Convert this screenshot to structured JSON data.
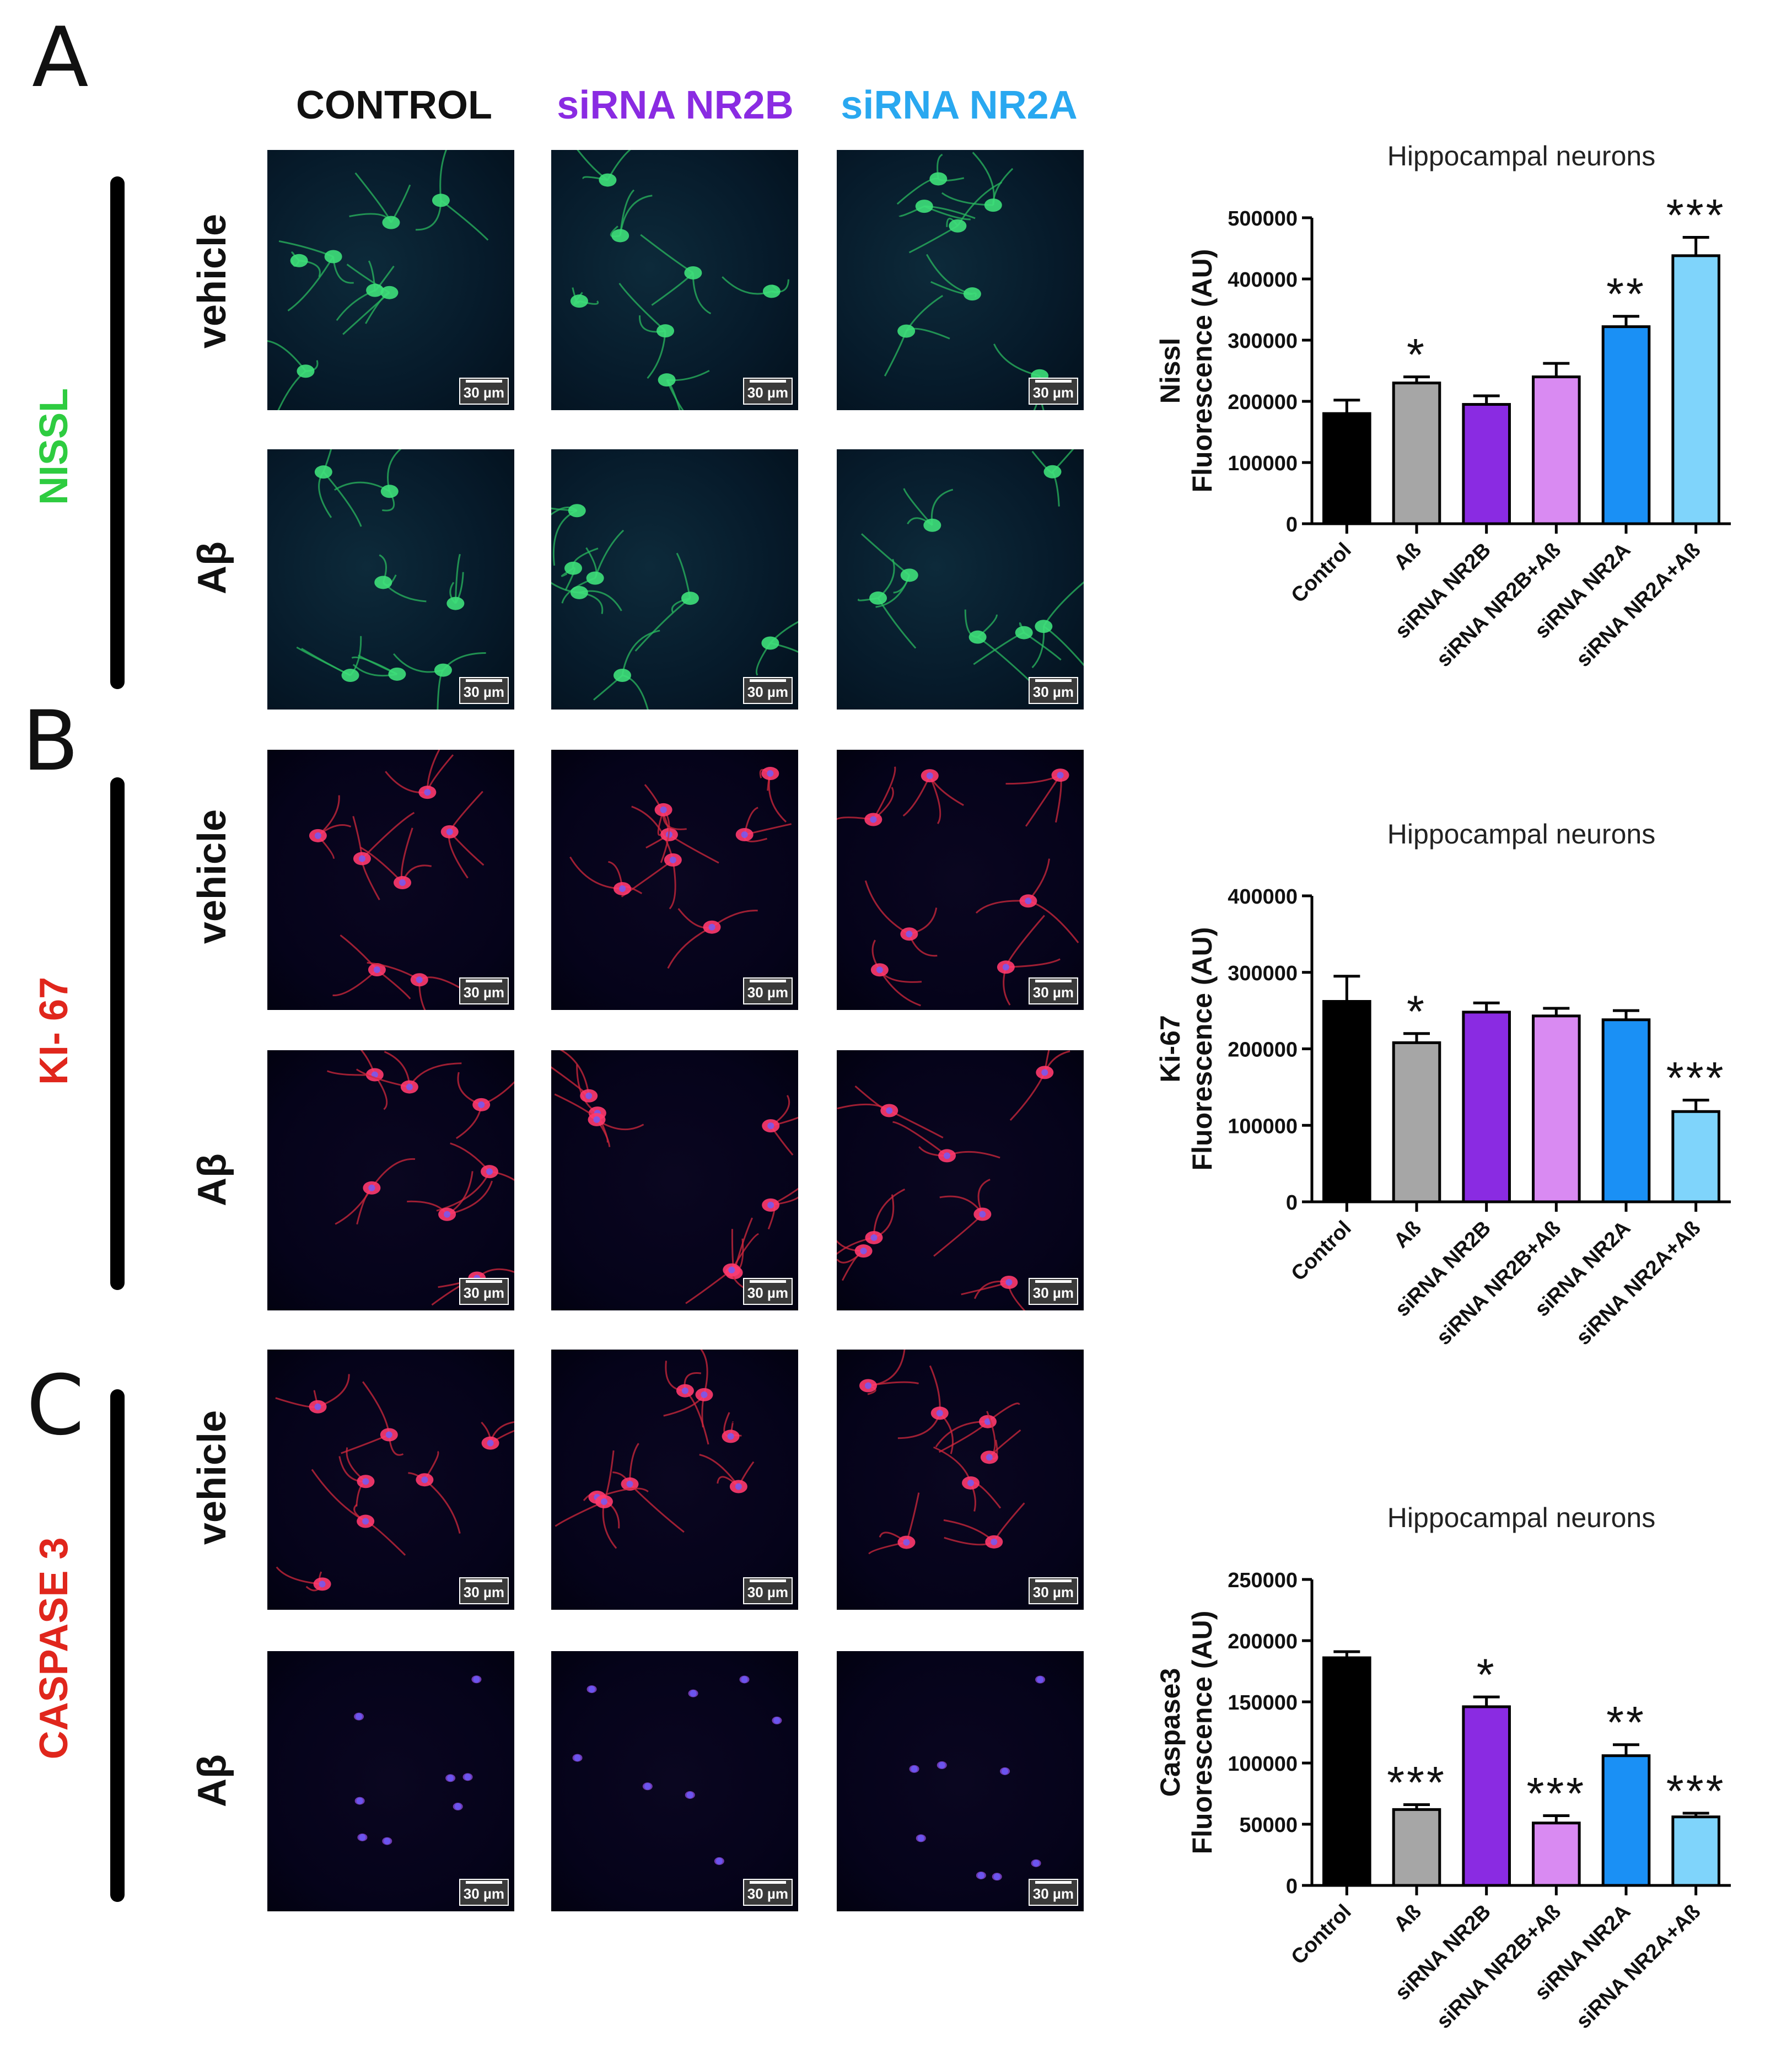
{
  "panels": [
    {
      "letter": "A",
      "stain": "NISSL",
      "stain_color": "#2ecc40"
    },
    {
      "letter": "B",
      "stain": "KI- 67",
      "stain_color": "#e0261c"
    },
    {
      "letter": "C",
      "stain": "CASPASE 3",
      "stain_color": "#e0261c"
    }
  ],
  "columns": [
    {
      "label": "CONTROL",
      "color": "#111111"
    },
    {
      "label": "siRNA NR2B",
      "color": "#8a2be2"
    },
    {
      "label": "siRNA NR2A",
      "color": "#29a8f0"
    }
  ],
  "row_labels": {
    "vehicle": "vehicle",
    "abeta": "Aβ"
  },
  "scale_label": "30 µm",
  "bar_colors": [
    "#000000",
    "#a6a6a6",
    "#8a2be2",
    "#d98af2",
    "#1a90f5",
    "#7fd4fb"
  ],
  "chart_data": [
    {
      "type": "bar",
      "title": "Hippocampal neurons",
      "ylabel": "Nissl Fluorescence (AU)",
      "ylabel_lines": [
        "Nissl",
        "Fluorescence (AU)"
      ],
      "categories": [
        "Control",
        "Aß",
        "siRNA NR2B",
        "siRNA NR2B+Aß",
        "siRNA NR2A",
        "siRNA NR2A+Aß"
      ],
      "values": [
        180000,
        230000,
        195000,
        240000,
        322000,
        438000
      ],
      "errors": [
        22000,
        10000,
        14000,
        22000,
        17000,
        30000
      ],
      "significance": [
        "",
        "*",
        "",
        "",
        "**",
        "***"
      ],
      "ylim": [
        0,
        500000
      ],
      "yticks": [
        0,
        100000,
        200000,
        300000,
        400000,
        500000
      ]
    },
    {
      "type": "bar",
      "title": "Hippocampal neurons",
      "ylabel": "Ki-67 Fluorescence (AU)",
      "ylabel_lines": [
        "Ki-67",
        "Fluorescence (AU)"
      ],
      "categories": [
        "Control",
        "Aß",
        "siRNA NR2B",
        "siRNA NR2B+Aß",
        "siRNA NR2A",
        "siRNA NR2A+Aß"
      ],
      "values": [
        262000,
        208000,
        248000,
        243000,
        238000,
        118000
      ],
      "errors": [
        33000,
        12000,
        12000,
        10000,
        12000,
        15000
      ],
      "significance": [
        "",
        "*",
        "",
        "",
        "",
        "***"
      ],
      "ylim": [
        0,
        400000
      ],
      "yticks": [
        0,
        100000,
        200000,
        300000,
        400000
      ]
    },
    {
      "type": "bar",
      "title": "Hippocampal neurons",
      "ylabel": "Caspase3 Fluorescence (AU)",
      "ylabel_lines": [
        "Caspase3",
        "Fluorescence (AU)"
      ],
      "categories": [
        "Control",
        "Aß",
        "siRNA NR2B",
        "siRNA NR2B+Aß",
        "siRNA NR2A",
        "siRNA NR2A+Aß"
      ],
      "values": [
        186000,
        62000,
        146000,
        51000,
        106000,
        56000
      ],
      "errors": [
        5000,
        4000,
        8000,
        6000,
        9000,
        3000
      ],
      "significance": [
        "",
        "***",
        "*",
        "***",
        "**",
        "***"
      ],
      "ylim": [
        0,
        250000
      ],
      "yticks": [
        0,
        50000,
        100000,
        150000,
        200000,
        250000
      ]
    }
  ]
}
